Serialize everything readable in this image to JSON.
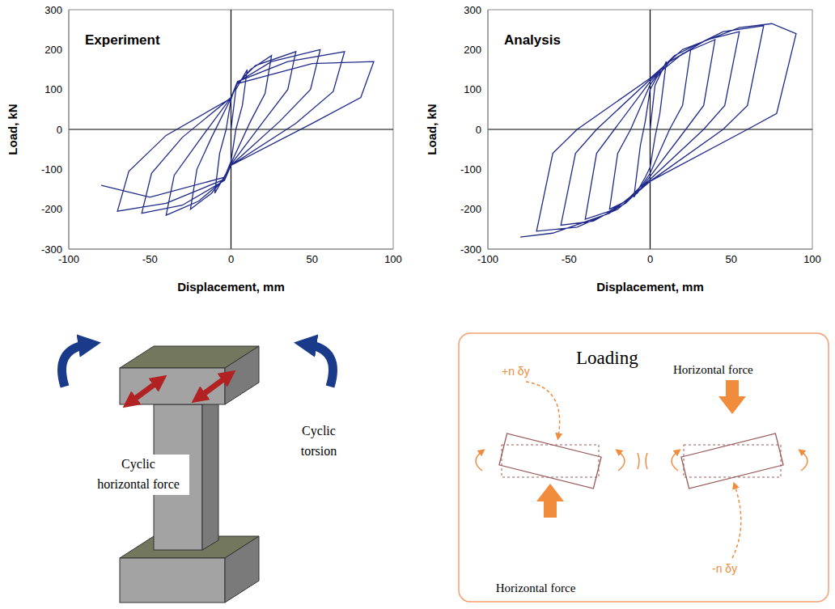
{
  "chart_data": [
    {
      "type": "line",
      "title": "Experiment",
      "x_label": "Displacement, mm",
      "y_label": "Load, kN",
      "xlim": [
        -100,
        100
      ],
      "ylim": [
        -300,
        300
      ],
      "xticks": [
        -100,
        -50,
        0,
        50,
        100
      ],
      "yticks": [
        -300,
        -200,
        -100,
        0,
        100,
        200,
        300
      ],
      "grid": false,
      "color": "#1f2a8a",
      "x": [
        0,
        3,
        10,
        7,
        3,
        0,
        -3,
        -10,
        -7,
        -3,
        0,
        3,
        12,
        25,
        21,
        12,
        0,
        -4,
        -12,
        -25,
        -21,
        -12,
        0,
        4,
        15,
        40,
        35,
        20,
        0,
        -4,
        -20,
        -40,
        -35,
        -20,
        0,
        4,
        25,
        55,
        49,
        30,
        0,
        -4,
        -30,
        -55,
        -49,
        -30,
        0,
        4,
        35,
        70,
        63,
        40,
        0,
        -4,
        -40,
        -70,
        -63,
        -40,
        0,
        4,
        50,
        88,
        80,
        50,
        0,
        -4,
        -50,
        -80
      ],
      "values": [
        0,
        100,
        150,
        60,
        0,
        -80,
        -110,
        -160,
        -60,
        0,
        75,
        110,
        150,
        185,
        90,
        20,
        -85,
        -120,
        -160,
        -200,
        -100,
        -20,
        78,
        115,
        160,
        195,
        100,
        20,
        -88,
        -125,
        -180,
        -215,
        -115,
        -30,
        80,
        118,
        170,
        200,
        100,
        20,
        -90,
        -128,
        -190,
        -210,
        -110,
        -20,
        80,
        120,
        170,
        195,
        95,
        15,
        -90,
        -125,
        -185,
        -205,
        -105,
        -15,
        78,
        115,
        165,
        170,
        80,
        15,
        -90,
        -120,
        -170,
        -140
      ]
    },
    {
      "type": "line",
      "title": "Analysis",
      "x_label": "Displacement, mm",
      "y_label": "Load, kN",
      "xlim": [
        -100,
        100
      ],
      "ylim": [
        -300,
        300
      ],
      "xticks": [
        -100,
        -50,
        0,
        50,
        100
      ],
      "yticks": [
        -300,
        -200,
        -100,
        0,
        100,
        200,
        300
      ],
      "grid": false,
      "color": "#1f2a8a",
      "x": [
        0,
        3,
        10,
        6,
        3,
        0,
        -3,
        -10,
        -6,
        -3,
        0,
        4,
        12,
        25,
        20,
        12,
        0,
        -5,
        -15,
        -25,
        -20,
        -12,
        0,
        5,
        20,
        40,
        33,
        22,
        0,
        -8,
        -25,
        -40,
        -33,
        -22,
        0,
        10,
        35,
        55,
        46,
        33,
        0,
        -15,
        -35,
        -55,
        -46,
        -33,
        0,
        15,
        45,
        70,
        60,
        45,
        0,
        -20,
        -45,
        -70,
        -60,
        -45,
        0,
        20,
        55,
        75,
        90,
        78,
        60,
        0,
        -25,
        -60,
        -80
      ],
      "values": [
        0,
        110,
        170,
        40,
        -20,
        -95,
        -120,
        -170,
        -40,
        20,
        100,
        130,
        170,
        200,
        60,
        0,
        -110,
        -140,
        -180,
        -200,
        -60,
        0,
        112,
        140,
        190,
        225,
        60,
        0,
        -118,
        -160,
        -205,
        -225,
        -60,
        0,
        120,
        165,
        225,
        245,
        60,
        0,
        -125,
        -185,
        -230,
        -240,
        -60,
        0,
        125,
        185,
        245,
        260,
        60,
        0,
        -130,
        -200,
        -245,
        -255,
        -60,
        0,
        128,
        200,
        255,
        265,
        240,
        40,
        0,
        -130,
        -210,
        -260,
        -270
      ]
    }
  ],
  "diagrams": {
    "specimen": {
      "force": [
        "Cyclic",
        "horizontal force"
      ],
      "torsion": [
        "Cyclic",
        "torsion"
      ]
    },
    "loading": {
      "title": "Loading",
      "force_top": "Horizontal force",
      "force_bottom": "Horizontal force",
      "positive": "+n δy",
      "negative": "-n δy"
    }
  }
}
